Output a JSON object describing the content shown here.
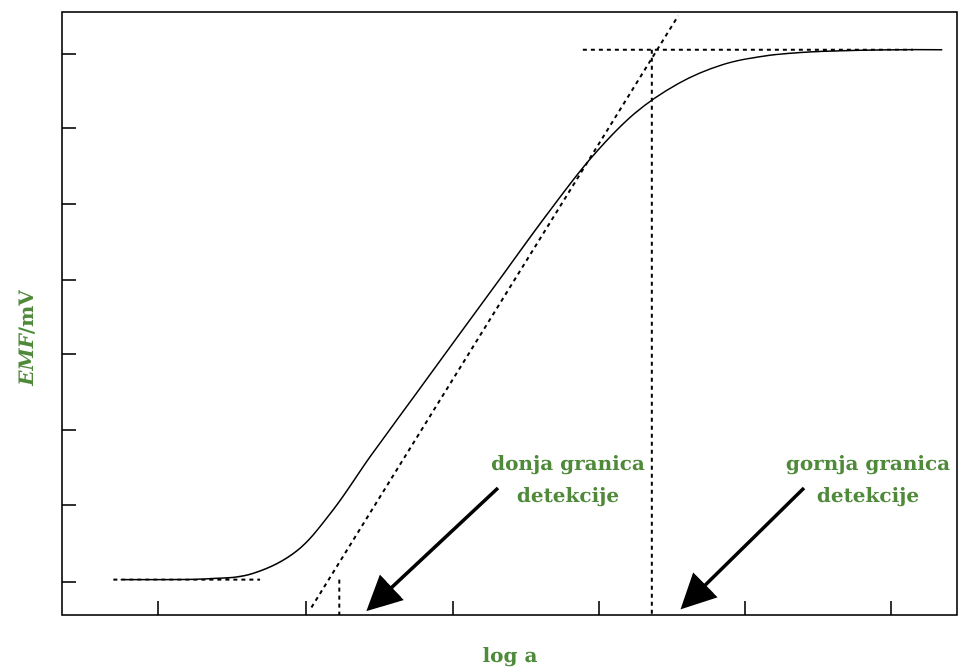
{
  "chart_data": {
    "type": "line",
    "title": "",
    "xlabel": "log a",
    "ylabel": "EMF/mV",
    "ylabel_italic": "EMF",
    "ylabel_unit": "/mV",
    "x_ticks_count": 6,
    "y_ticks_count": 8,
    "grid": false,
    "axis_color": "#000000",
    "label_color": "#4f8a3a",
    "series": [
      {
        "style": "solid",
        "x": [
          -0.1,
          0.2,
          0.5,
          0.8,
          1.1,
          1.35,
          1.6,
          1.9,
          2.2,
          2.5,
          2.8,
          3.1,
          3.4,
          3.7,
          4.0,
          4.3,
          4.6,
          4.9,
          5.2,
          5.5
        ],
        "y": [
          0.47,
          0.47,
          0.48,
          0.55,
          0.85,
          1.4,
          2.1,
          2.9,
          3.7,
          4.5,
          5.3,
          6.05,
          6.65,
          7.05,
          7.3,
          7.42,
          7.47,
          7.49,
          7.5,
          7.5
        ]
      }
    ],
    "tangent_lines": [
      {
        "style": "dotted",
        "x": [
          -0.15,
          0.85
        ],
        "y": [
          0.47,
          0.47
        ]
      },
      {
        "style": "dotted",
        "x": [
          3.05,
          5.3
        ],
        "y": [
          7.5,
          7.5
        ]
      },
      {
        "style": "dotted",
        "x": [
          1.2,
          3.7
        ],
        "y": [
          0.1,
          7.95
        ]
      }
    ],
    "detection_limits": [
      {
        "style": "dotted",
        "x": 1.39,
        "y_top": 0.47
      },
      {
        "style": "dotted",
        "x": 3.52,
        "y_top": 7.5
      }
    ],
    "annotations": [
      {
        "lines": [
          "donja granica",
          "detekcije"
        ],
        "arrow_to_x": 1.39
      },
      {
        "lines": [
          "gornja granica",
          "detekcije"
        ],
        "arrow_to_x": 3.52
      }
    ]
  }
}
